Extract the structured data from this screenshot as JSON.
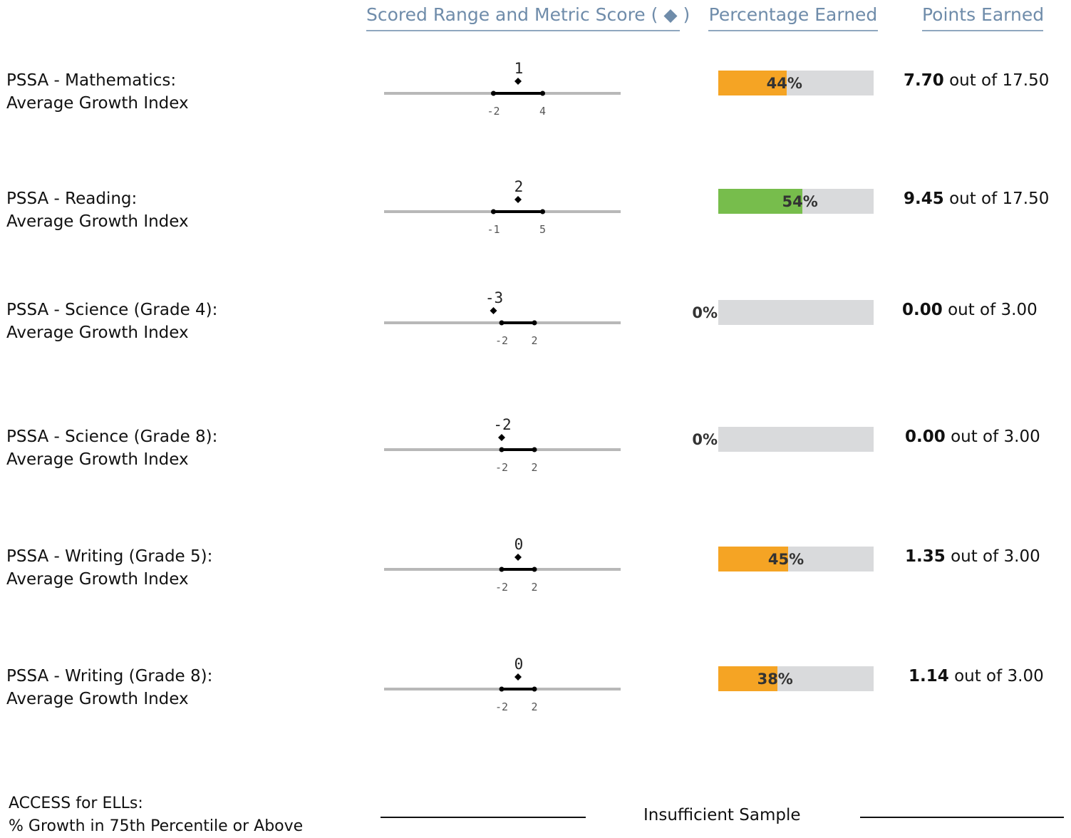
{
  "headers": {
    "scored": "Scored Range and Metric Score",
    "scored_symbol": "( ◆ )",
    "percentage": "Percentage Earned",
    "points": "Points Earned"
  },
  "colors": {
    "orange": "#f5a424",
    "green": "#77bd4c",
    "bar_track": "#d9dadc",
    "header_text": "#6f8caa"
  },
  "rows": [
    {
      "line1": "PSSA - Mathematics:",
      "line2": "Average Growth Index",
      "range_low": -2,
      "range_high": 4,
      "range_low_label": "-2",
      "range_high_label": "4",
      "score": 1,
      "score_label": "1",
      "percent": 44,
      "percent_label": "44%",
      "bar_color": "#f5a424",
      "points_earned": "7.70",
      "out_of_text": "out of",
      "points_possible": "17.50"
    },
    {
      "line1": "PSSA - Reading:",
      "line2": "Average Growth Index",
      "range_low": -1,
      "range_high": 5,
      "range_low_label": "-1",
      "range_high_label": "5",
      "score": 2,
      "score_label": "2",
      "percent": 54,
      "percent_label": "54%",
      "bar_color": "#77bd4c",
      "points_earned": "9.45",
      "out_of_text": "out of",
      "points_possible": "17.50"
    },
    {
      "line1": "PSSA - Science (Grade 4):",
      "line2": "Average Growth Index",
      "range_low": -2,
      "range_high": 2,
      "range_low_label": "-2",
      "range_high_label": "2",
      "score": -3,
      "score_label": "-3",
      "percent": 0,
      "percent_label": "0%",
      "bar_color": "#f5a424",
      "points_earned": "0.00",
      "out_of_text": "out of",
      "points_possible": "3.00"
    },
    {
      "line1": "PSSA - Science (Grade 8):",
      "line2": "Average Growth Index",
      "range_low": -2,
      "range_high": 2,
      "range_low_label": "-2",
      "range_high_label": "2",
      "score": -2,
      "score_label": "-2",
      "percent": 0,
      "percent_label": "0%",
      "bar_color": "#f5a424",
      "points_earned": "0.00",
      "out_of_text": "out of",
      "points_possible": "3.00"
    },
    {
      "line1": "PSSA - Writing (Grade 5):",
      "line2": "Average Growth Index",
      "range_low": -2,
      "range_high": 2,
      "range_low_label": "-2",
      "range_high_label": "2",
      "score": 0,
      "score_label": "0",
      "percent": 45,
      "percent_label": "45%",
      "bar_color": "#f5a424",
      "points_earned": "1.35",
      "out_of_text": "out of",
      "points_possible": "3.00"
    },
    {
      "line1": "PSSA - Writing (Grade 8):",
      "line2": "Average Growth Index",
      "range_low": -2,
      "range_high": 2,
      "range_low_label": "-2",
      "range_high_label": "2",
      "score": 0,
      "score_label": "0",
      "percent": 38,
      "percent_label": "38%",
      "bar_color": "#f5a424",
      "points_earned": "1.14",
      "out_of_text": "out of",
      "points_possible": "3.00"
    }
  ],
  "access": {
    "line1": "ACCESS for ELLs:",
    "line2": "% Growth in 75th Percentile or Above",
    "status": "Insufficient Sample"
  }
}
